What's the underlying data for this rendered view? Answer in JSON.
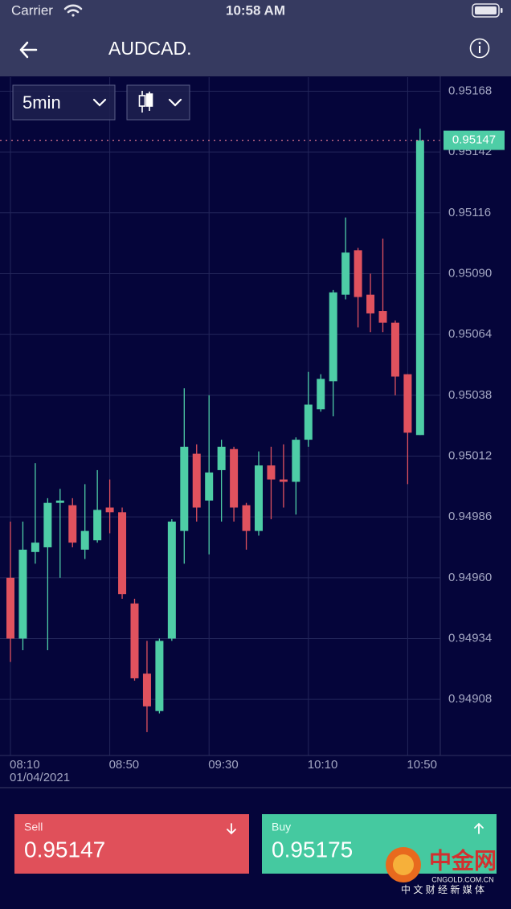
{
  "status_bar": {
    "carrier": "Carrier",
    "time": "10:58 AM"
  },
  "header": {
    "title": "AUDCAD."
  },
  "toolbar": {
    "interval": "5min"
  },
  "chart_data": {
    "type": "candlestick",
    "categories": [
      "08:10",
      null,
      null,
      null,
      null,
      null,
      null,
      null,
      "08:50",
      null,
      null,
      null,
      null,
      null,
      null,
      null,
      "09:30",
      null,
      null,
      null,
      null,
      null,
      null,
      null,
      "10:10",
      null,
      null,
      null,
      null,
      null,
      null,
      null,
      "10:50",
      null
    ],
    "date_label": "01/04/2021",
    "open": [
      0.9496,
      0.94934,
      0.94971,
      0.94973,
      0.94992,
      0.94991,
      0.94972,
      0.94976,
      0.9499,
      0.94988,
      0.94949,
      0.94919,
      0.94903,
      0.94934,
      0.9498,
      0.95013,
      0.94993,
      0.95006,
      0.95015,
      0.94991,
      0.9498,
      0.95008,
      0.95002,
      0.95001,
      0.95019,
      0.95032,
      0.95044,
      0.95081,
      0.951,
      0.95081,
      0.95074,
      0.95069,
      0.95047,
      0.95021
    ],
    "high": [
      0.94984,
      0.94984,
      0.95009,
      0.94994,
      0.94998,
      0.94994,
      0.95,
      0.95006,
      0.95002,
      0.9499,
      0.94951,
      0.94933,
      0.94934,
      0.94985,
      0.95041,
      0.95017,
      0.95038,
      0.95019,
      0.95016,
      0.94992,
      0.95014,
      0.95016,
      0.95017,
      0.9502,
      0.95048,
      0.95047,
      0.95083,
      0.95114,
      0.95101,
      0.9509,
      0.95105,
      0.9507,
      0.95047,
      0.95152
    ],
    "low": [
      0.94924,
      0.94929,
      0.94966,
      0.94929,
      0.9496,
      0.94973,
      0.94968,
      0.94975,
      0.94979,
      0.94951,
      0.94916,
      0.94894,
      0.94902,
      0.94933,
      0.94966,
      0.94984,
      0.9497,
      0.94984,
      0.94984,
      0.94972,
      0.94978,
      0.94985,
      0.9499,
      0.94987,
      0.95016,
      0.95031,
      0.95029,
      0.95079,
      0.95067,
      0.95065,
      0.95065,
      0.95038,
      0.95,
      0.95021
    ],
    "close": [
      0.94934,
      0.94972,
      0.94975,
      0.94992,
      0.94993,
      0.94975,
      0.9498,
      0.94989,
      0.94988,
      0.94953,
      0.94917,
      0.94905,
      0.94933,
      0.94984,
      0.95016,
      0.9499,
      0.95005,
      0.95016,
      0.9499,
      0.9498,
      0.95008,
      0.95002,
      0.95001,
      0.95019,
      0.95034,
      0.95045,
      0.95082,
      0.95099,
      0.9508,
      0.95073,
      0.95069,
      0.95046,
      0.95022,
      0.95147
    ],
    "up_color": "#4ecda6",
    "down_color": "#e0525e",
    "ylim": [
      0.94884,
      0.95174
    ],
    "yticks": [
      0.95168,
      0.95142,
      0.95116,
      {
        "value": 0.9509,
        "label": "0.95090"
      },
      0.95064,
      0.95038,
      0.95012,
      0.94986,
      {
        "value": 0.9496,
        "label": "0.94960"
      },
      0.94934,
      0.94908
    ],
    "grid": true,
    "current_price": 0.95147
  },
  "sell": {
    "label": "Sell",
    "price": "0.95147"
  },
  "buy": {
    "label": "Buy",
    "price": "0.95175"
  },
  "watermark": {
    "name": "中金网",
    "site": "CNGOLD.COM.CN",
    "tagline": "中 文 财 经 新 媒 体"
  }
}
